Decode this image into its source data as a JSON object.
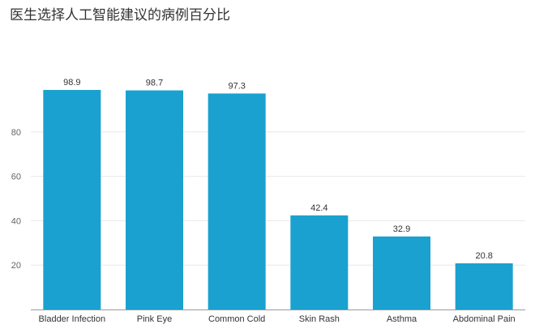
{
  "title": "医生选择人工智能建议的病例百分比",
  "colors": {
    "bar": "#1aa1d0",
    "grid": "#e8e8e8",
    "axis": "#9a9a9a"
  },
  "chart_data": {
    "type": "bar",
    "title": "医生选择人工智能建议的病例百分比",
    "categories": [
      "Bladder Infection",
      "Pink Eye",
      "Common Cold",
      "Skin Rash",
      "Asthma",
      "Abdominal Pain"
    ],
    "values": [
      98.9,
      98.7,
      97.3,
      42.4,
      32.9,
      20.8
    ],
    "data_labels": [
      "98.9",
      "98.7",
      "97.3",
      "42.4",
      "32.9",
      "20.8"
    ],
    "yticks": [
      20,
      40,
      60,
      80
    ],
    "ylim": [
      0,
      100
    ],
    "grid": true,
    "legend": "none"
  }
}
